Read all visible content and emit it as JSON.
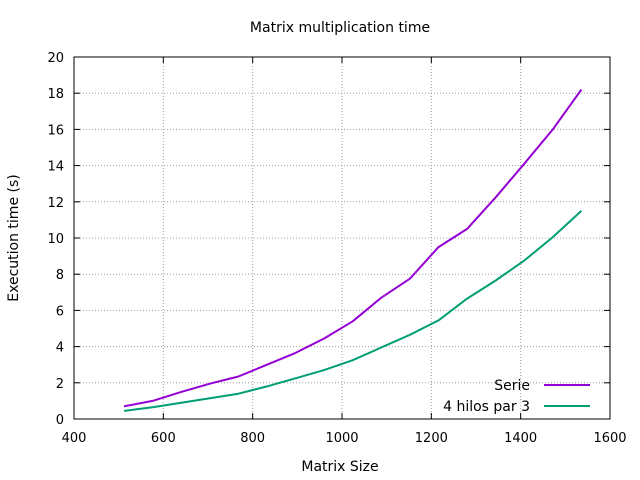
{
  "chart_data": {
    "type": "line",
    "title": "Matrix multiplication time",
    "xlabel": "Matrix Size",
    "ylabel": "Execution time (s)",
    "xlim": [
      400,
      1600
    ],
    "ylim": [
      0,
      20
    ],
    "xticks": [
      400,
      600,
      800,
      1000,
      1200,
      1400,
      1600
    ],
    "yticks": [
      0,
      2,
      4,
      6,
      8,
      10,
      12,
      14,
      16,
      18,
      20
    ],
    "grid": true,
    "legend_position": "bottom-right",
    "series": [
      {
        "name": "Serie",
        "color": "#9400d3",
        "x": [
          512,
          576,
          640,
          704,
          768,
          832,
          896,
          960,
          1024,
          1088,
          1152,
          1216,
          1280,
          1344,
          1408,
          1472,
          1536
        ],
        "y": [
          0.7,
          1.0,
          1.5,
          1.95,
          2.35,
          3.0,
          3.65,
          4.45,
          5.4,
          6.7,
          7.75,
          9.5,
          10.5,
          12.25,
          14.1,
          16.0,
          18.2
        ]
      },
      {
        "name": "4 hilos par 3",
        "color": "#009e73",
        "x": [
          512,
          576,
          640,
          704,
          768,
          832,
          896,
          960,
          1024,
          1088,
          1152,
          1216,
          1280,
          1344,
          1408,
          1472,
          1536
        ],
        "y": [
          0.45,
          0.65,
          0.9,
          1.15,
          1.4,
          1.8,
          2.25,
          2.7,
          3.25,
          3.95,
          4.65,
          5.45,
          6.65,
          7.65,
          8.75,
          10.05,
          11.5
        ]
      }
    ]
  }
}
